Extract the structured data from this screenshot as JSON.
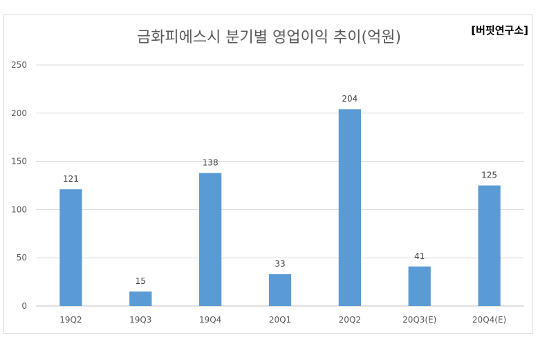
{
  "title": "금화피에스시 분기별 영업이익 추이(억원)",
  "source_label": "[버핏연구소]",
  "colors": {
    "bar": "#5b9bd5",
    "grid": "#d9d9d9",
    "axis_text": "#595959"
  },
  "chart_data": {
    "type": "bar",
    "title": "금화피에스시 분기별 영업이익 추이(억원)",
    "categories": [
      "19Q2",
      "19Q3",
      "19Q4",
      "20Q1",
      "20Q2",
      "20Q3(E)",
      "20Q4(E)"
    ],
    "values": [
      121,
      15,
      138,
      33,
      204,
      41,
      125
    ],
    "ylim": [
      0,
      250
    ],
    "yticks": [
      0,
      50,
      100,
      150,
      200,
      250
    ],
    "grid": true,
    "legend": "none"
  }
}
